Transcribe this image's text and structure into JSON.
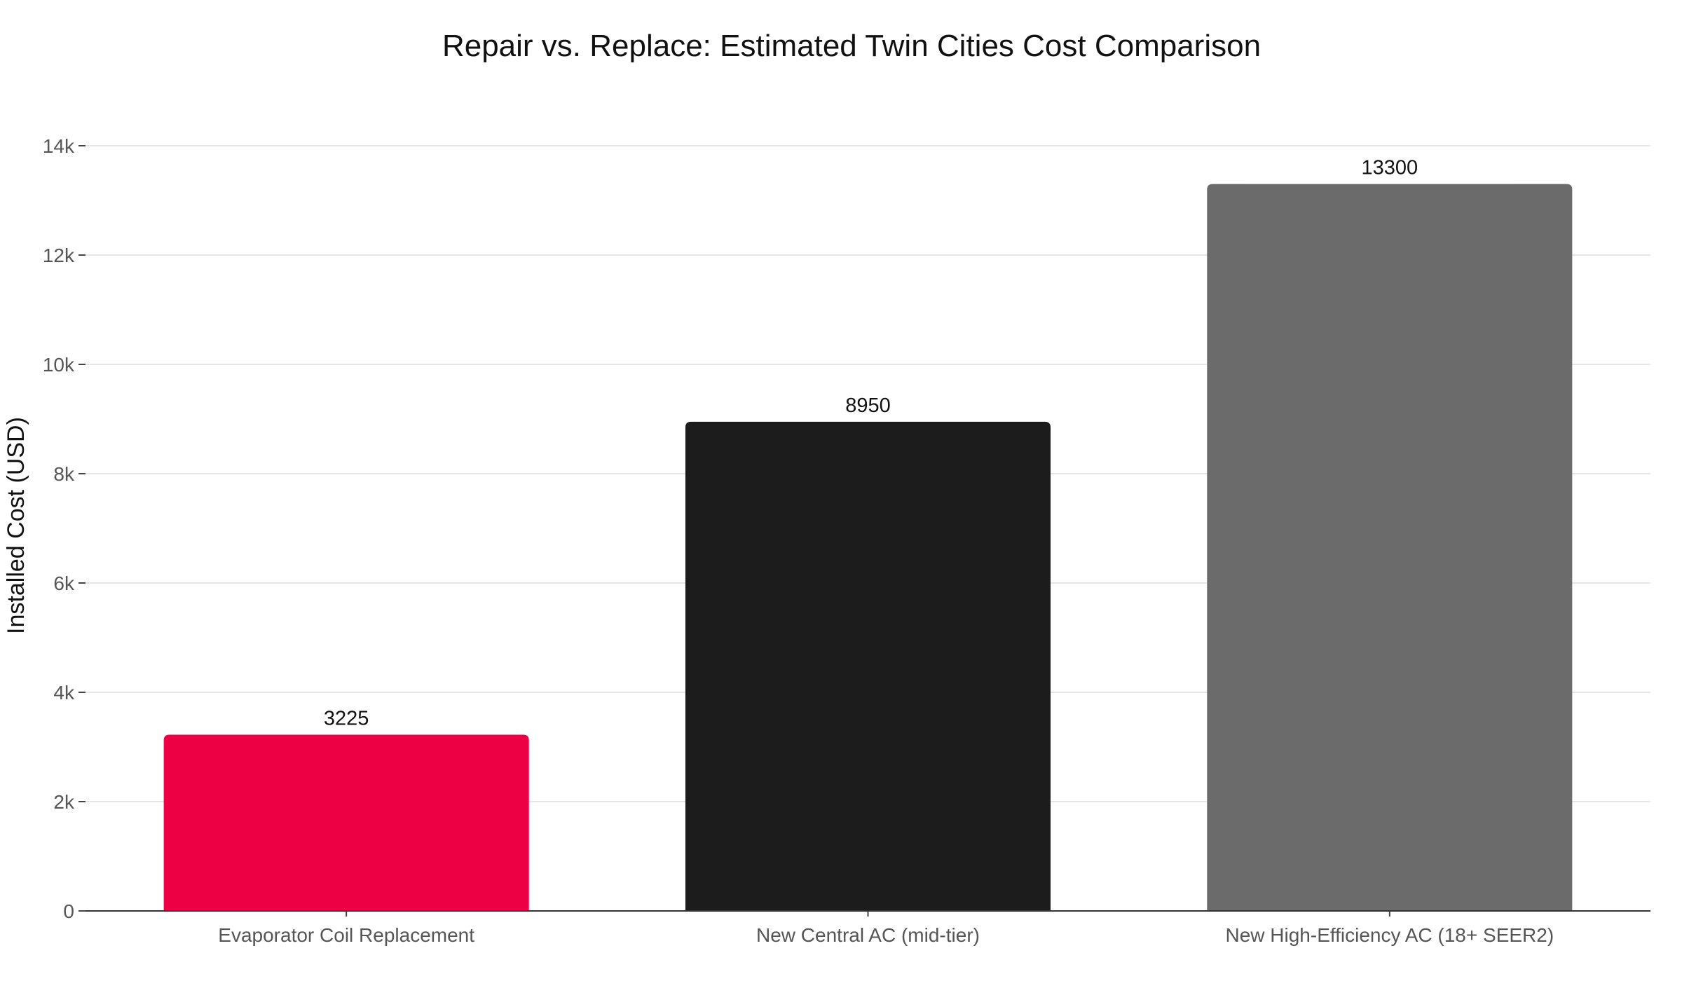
{
  "chart_data": {
    "type": "bar",
    "title": "Repair vs. Replace: Estimated Twin Cities Cost Comparison",
    "xlabel": "",
    "ylabel": "Installed Cost (USD)",
    "categories": [
      "Evaporator Coil Replacement",
      "New Central AC (mid-tier)",
      "New High-Efficiency AC (18+ SEER2)"
    ],
    "values": [
      3225,
      8950,
      13300
    ],
    "data_labels": [
      "3225",
      "8950",
      "13300"
    ],
    "bar_colors": [
      "#ee0044",
      "#1c1c1c",
      "#6b6b6b"
    ],
    "ylim": [
      0,
      14000
    ],
    "y_ticks": [
      0,
      2000,
      4000,
      6000,
      8000,
      10000,
      12000,
      14000
    ],
    "y_tick_labels": [
      "0",
      "2k",
      "4k",
      "6k",
      "8k",
      "10k",
      "12k",
      "14k"
    ],
    "grid": true,
    "legend": "none"
  }
}
